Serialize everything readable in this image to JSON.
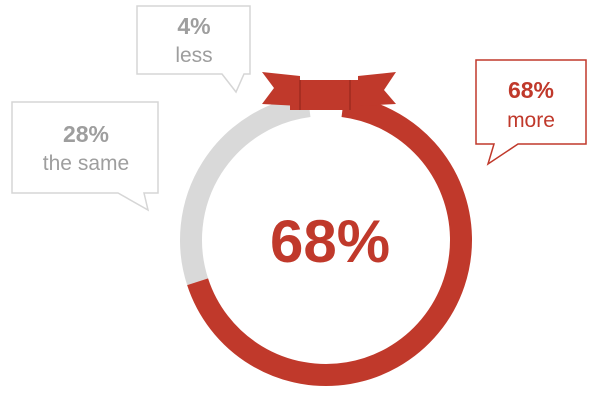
{
  "chart_data": {
    "type": "pie",
    "style": "donut",
    "center_label": "68%",
    "slices": [
      {
        "pct_label": "68%",
        "label": "more",
        "value": 68,
        "color": "#c0392b"
      },
      {
        "pct_label": "28%",
        "label": "the same",
        "value": 28,
        "color": "#d9d9d9"
      },
      {
        "pct_label": "4%",
        "label": "less",
        "value": 4,
        "color": "#c0392b"
      }
    ],
    "colors": {
      "accent": "#c0392b",
      "ring_track": "#d9d9d9",
      "neutral_text": "#9e9e9e",
      "callout_border": "#d6d6d6"
    },
    "decoration": "ribbon-banner-icon"
  }
}
